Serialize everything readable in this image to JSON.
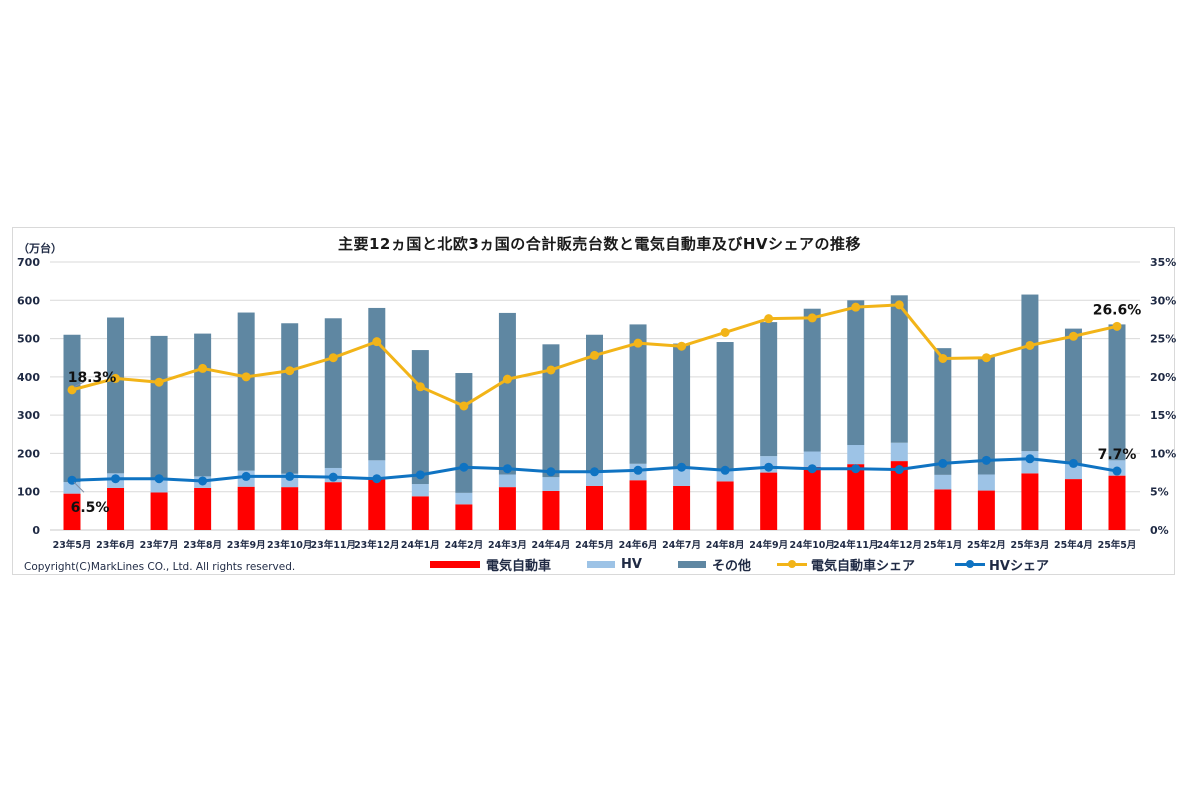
{
  "chart_data": {
    "type": "bar",
    "subtype": "stacked bar + line (dual axis)",
    "title": "主要12ヵ国と北欧3ヵ国の合計販売台数と電気自動車及びHVシェアの推移",
    "ylabel": "（万台）",
    "ylabel_right": "",
    "ylim": [
      0,
      700
    ],
    "yticks": [
      "0",
      "100",
      "200",
      "300",
      "400",
      "500",
      "600",
      "700"
    ],
    "ylim_right": [
      0,
      35
    ],
    "yticks_right": [
      "0%",
      "5%",
      "10%",
      "15%",
      "20%",
      "25%",
      "30%",
      "35%"
    ],
    "grid": true,
    "legend_position": "bottom",
    "categories": [
      "23年5月",
      "23年6月",
      "23年7月",
      "23年8月",
      "23年9月",
      "23年10月",
      "23年11月",
      "23年12月",
      "24年1月",
      "24年2月",
      "24年3月",
      "24年4月",
      "24年5月",
      "24年6月",
      "24年7月",
      "24年8月",
      "24年9月",
      "24年10月",
      "24年11月",
      "24年12月",
      "25年1月",
      "25年2月",
      "25年3月",
      "25年4月",
      "25年5月"
    ],
    "series": [
      {
        "name": "電気自動車",
        "kind": "bar",
        "axis": "left",
        "color": "#ff0000",
        "values": [
          95,
          110,
          98,
          110,
          113,
          112,
          125,
          136,
          88,
          67,
          112,
          102,
          115,
          130,
          115,
          127,
          150,
          165,
          172,
          180,
          106,
          103,
          148,
          133,
          142
        ]
      },
      {
        "name": "HV",
        "kind": "bar",
        "axis": "left",
        "color": "#9dc3e6",
        "values": [
          30,
          38,
          33,
          30,
          42,
          35,
          37,
          46,
          32,
          30,
          33,
          36,
          38,
          43,
          45,
          33,
          43,
          40,
          50,
          48,
          38,
          42,
          58,
          40,
          40
        ]
      },
      {
        "name": "その他",
        "kind": "bar",
        "axis": "left",
        "color": "#5f87a2",
        "values": [
          385,
          407,
          376,
          373,
          413,
          393,
          391,
          398,
          350,
          313,
          422,
          347,
          357,
          364,
          327,
          331,
          350,
          373,
          378,
          385,
          331,
          307,
          409,
          353,
          355
        ]
      },
      {
        "name": "電気自動車シェア",
        "kind": "line",
        "axis": "right",
        "color": "#f2b418",
        "values": [
          18.3,
          19.8,
          19.3,
          21.1,
          20.0,
          20.8,
          22.5,
          24.6,
          18.7,
          16.2,
          19.7,
          20.9,
          22.8,
          24.4,
          24.0,
          25.8,
          27.6,
          27.7,
          29.1,
          29.4,
          22.4,
          22.5,
          24.1,
          25.3,
          26.6
        ]
      },
      {
        "name": "HVシェア",
        "kind": "line",
        "axis": "right",
        "color": "#0f73c2",
        "values": [
          6.5,
          6.7,
          6.7,
          6.4,
          7.0,
          7.0,
          6.9,
          6.7,
          7.2,
          8.2,
          8.0,
          7.6,
          7.6,
          7.8,
          8.2,
          7.8,
          8.2,
          8.0,
          8.0,
          7.9,
          8.7,
          9.1,
          9.3,
          8.7,
          7.7
        ]
      }
    ],
    "totals": [
      510,
      555,
      507,
      513,
      568,
      540,
      553,
      580,
      470,
      410,
      567,
      485,
      510,
      537,
      487,
      491,
      543,
      578,
      600,
      613,
      475,
      452,
      615,
      526,
      537
    ],
    "annotations": [
      {
        "text": "18.3%",
        "series": "電気自動車シェア",
        "index": 0
      },
      {
        "text": "6.5%",
        "series": "HVシェア",
        "index": 0
      },
      {
        "text": "26.6%",
        "series": "電気自動車シェア",
        "index": 24
      },
      {
        "text": "7.7%",
        "series": "HVシェア",
        "index": 24
      }
    ]
  },
  "labels": {
    "title": "主要12ヵ国と北欧3ヵ国の合計販売台数と電気自動車及びHVシェアの推移",
    "unit": "（万台）",
    "copyright": "Copyright(C)MarkLines CO., Ltd. All rights reserved."
  },
  "legend": [
    {
      "label": "電気自動車",
      "type": "bar",
      "color": "#ff0000"
    },
    {
      "label": "HV",
      "type": "bar",
      "color": "#9dc3e6"
    },
    {
      "label": "その他",
      "type": "bar",
      "color": "#5f87a2"
    },
    {
      "label": "電気自動車シェア",
      "type": "line",
      "color": "#f2b418"
    },
    {
      "label": "HVシェア",
      "type": "line",
      "color": "#0f73c2"
    }
  ]
}
